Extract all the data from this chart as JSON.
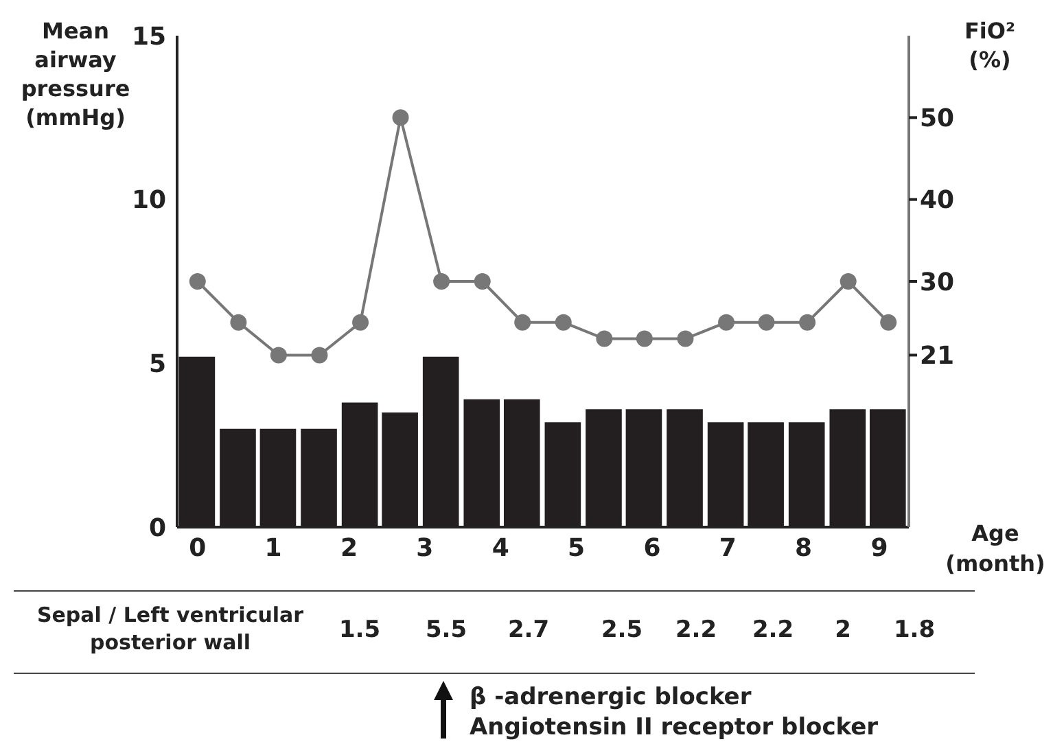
{
  "chart_data": {
    "type": "bar",
    "ylabel": "Mean airway pressure (mmHg)",
    "y2label": "FiO² (%)",
    "xlabel": "Age (month)",
    "x": [
      0,
      0.54,
      1.07,
      1.61,
      2.15,
      2.68,
      3.22,
      3.76,
      4.29,
      4.83,
      5.37,
      5.9,
      6.44,
      6.98,
      7.51,
      8.05,
      8.59,
      9.12
    ],
    "xlim": [
      -0.27,
      9.39
    ],
    "xticks": [
      0,
      1,
      2,
      3,
      4,
      5,
      6,
      7,
      8,
      9
    ],
    "ylim": [
      0,
      15
    ],
    "yticks": [
      0,
      5,
      10,
      15
    ],
    "y2lim": [
      0,
      60
    ],
    "y2ticks": [
      21,
      30,
      40,
      50
    ],
    "series": [
      {
        "color": "#231f20",
        "values": [
          5.2,
          3.0,
          3.0,
          3.0,
          3.8,
          3.5,
          5.2,
          3.9,
          3.9,
          3.2,
          3.6,
          3.6,
          3.6,
          3.2,
          3.2,
          3.2,
          3.6,
          3.6
        ]
      },
      {
        "type": "line",
        "axis": "y2",
        "color": "#777777",
        "marker": "circle",
        "values": [
          30,
          25,
          21,
          21,
          25,
          50,
          30,
          30,
          25,
          25,
          23,
          23,
          23,
          25,
          25,
          25,
          30,
          25
        ]
      }
    ],
    "grid": false,
    "legend": false,
    "annotations": [
      "Sepal / Left ventricular posterior wall",
      "1.5",
      "5.5",
      "2.7",
      "2.5",
      "2.2",
      "2.2",
      "2",
      "1.8",
      "β -adrenergic blocker",
      "Angiotensin II receptor blocker"
    ]
  }
}
